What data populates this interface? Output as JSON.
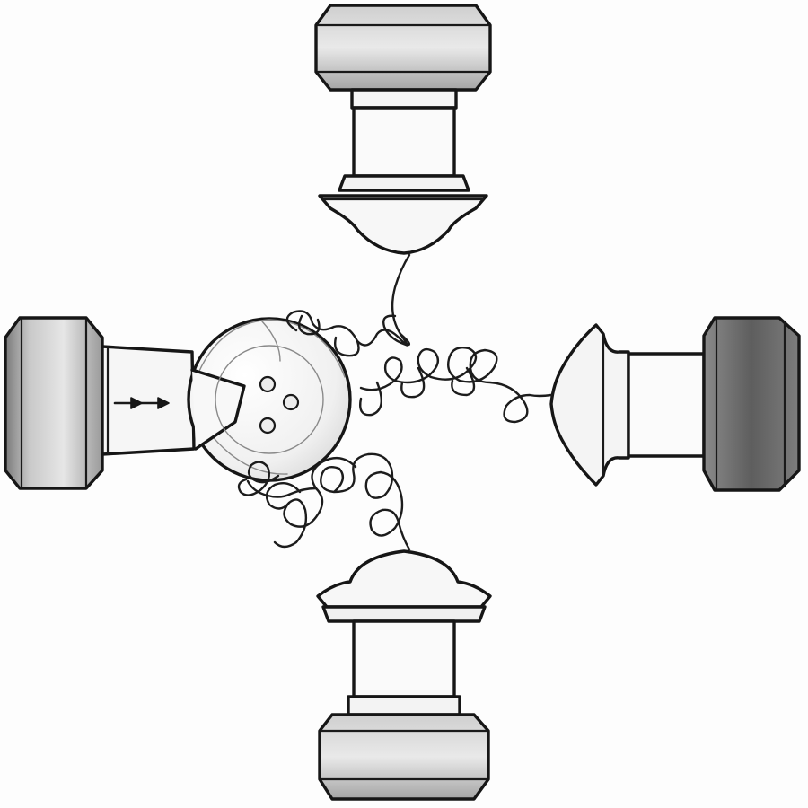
{
  "drawing": {
    "style": "pencil-sketch",
    "paper_color": "#fdfdfd",
    "ink_color": "#161616",
    "shade_color": "#8a8a8a",
    "parts": {
      "hub": "hub-disc",
      "hub_holes": 3,
      "receivers": 4,
      "coiled_cords": 4,
      "arrow_icon": "double-arrow-right-icon"
    }
  }
}
